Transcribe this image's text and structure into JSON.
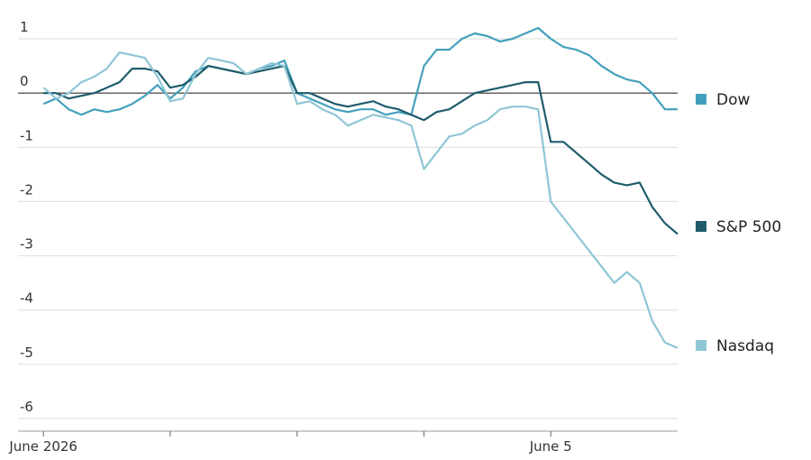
{
  "chart_data": {
    "type": "line",
    "x": [
      0,
      0.1,
      0.2,
      0.3,
      0.4,
      0.5,
      0.6,
      0.7,
      0.8,
      0.9,
      1,
      1.1,
      1.2,
      1.3,
      1.4,
      1.5,
      1.6,
      1.7,
      1.8,
      1.9,
      2,
      2.1,
      2.2,
      2.3,
      2.4,
      2.5,
      2.6,
      2.7,
      2.8,
      2.9,
      3,
      3.1,
      3.2,
      3.3,
      3.4,
      3.5,
      3.6,
      3.7,
      3.8,
      3.9,
      4,
      4.1,
      4.2,
      4.3,
      4.4,
      4.5,
      4.6,
      4.7,
      4.8,
      4.9,
      5
    ],
    "xlim": [
      -0.2,
      5.0
    ],
    "xticks": [
      {
        "value": 0,
        "label": "June 2026"
      },
      {
        "value": 1,
        "label": null
      },
      {
        "value": 2,
        "label": null
      },
      {
        "value": 3,
        "label": null
      },
      {
        "value": 4,
        "label": "June 5"
      }
    ],
    "ylim": [
      -6.3,
      1.3
    ],
    "yticks": [
      1,
      0,
      -1,
      -2,
      -3,
      -4,
      -5,
      -6
    ],
    "grid": true,
    "legend": "right",
    "series": [
      {
        "name": "Dow",
        "color": "#43a0bd",
        "values": [
          -0.2,
          -0.1,
          -0.3,
          -0.4,
          -0.3,
          -0.35,
          -0.3,
          -0.2,
          -0.05,
          0.15,
          -0.1,
          0.1,
          0.4,
          0.5,
          0.45,
          0.4,
          0.35,
          0.45,
          0.5,
          0.6,
          0.0,
          -0.1,
          -0.2,
          -0.3,
          -0.35,
          -0.3,
          -0.3,
          -0.4,
          -0.35,
          -0.4,
          0.5,
          0.8,
          0.8,
          1.0,
          1.1,
          1.05,
          0.95,
          1.0,
          1.1,
          1.2,
          1.0,
          0.85,
          0.8,
          0.7,
          0.5,
          0.35,
          0.25,
          0.2,
          0.0,
          -0.3,
          -0.3
        ]
      },
      {
        "name": "S&P 500",
        "color": "#1f5c6b",
        "values": [
          0,
          0,
          -0.1,
          -0.05,
          0.0,
          0.1,
          0.2,
          0.45,
          0.45,
          0.4,
          0.1,
          0.15,
          0.3,
          0.5,
          0.45,
          0.4,
          0.35,
          0.4,
          0.45,
          0.5,
          0.0,
          0.0,
          -0.1,
          -0.2,
          -0.25,
          -0.2,
          -0.15,
          -0.25,
          -0.3,
          -0.4,
          -0.5,
          -0.35,
          -0.3,
          -0.15,
          0.0,
          0.05,
          0.1,
          0.15,
          0.2,
          0.2,
          -0.9,
          -0.9,
          -1.1,
          -1.3,
          -1.5,
          -1.65,
          -1.7,
          -1.65,
          -2.1,
          -2.4,
          -2.6
        ]
      },
      {
        "name": "Nasdaq",
        "color": "#8fc6d6",
        "values": [
          0.1,
          -0.1,
          0.0,
          0.2,
          0.3,
          0.45,
          0.75,
          0.7,
          0.65,
          0.3,
          -0.15,
          -0.1,
          0.35,
          0.65,
          0.6,
          0.55,
          0.35,
          0.45,
          0.55,
          0.5,
          -0.2,
          -0.15,
          -0.3,
          -0.4,
          -0.6,
          -0.5,
          -0.4,
          -0.45,
          -0.5,
          -0.6,
          -1.4,
          -1.1,
          -0.8,
          -0.75,
          -0.6,
          -0.5,
          -0.3,
          -0.25,
          -0.25,
          -0.3,
          -2.0,
          -2.3,
          -2.6,
          -2.9,
          -3.2,
          -3.5,
          -3.3,
          -3.5,
          -4.2,
          -4.6,
          -4.7
        ]
      }
    ]
  }
}
